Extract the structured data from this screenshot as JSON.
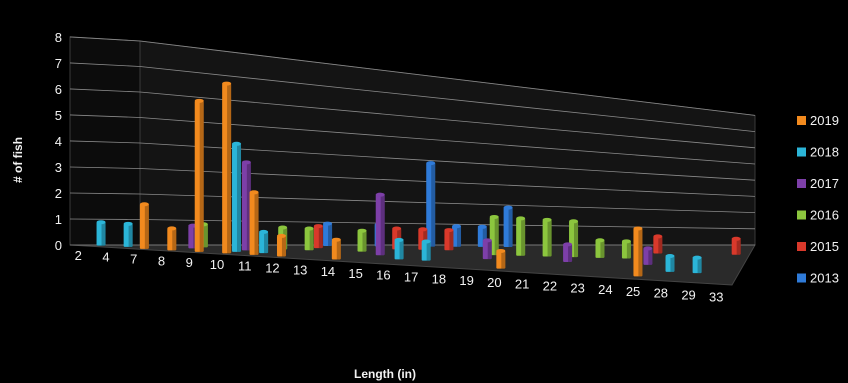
{
  "chart_data": {
    "type": "bar",
    "title": "",
    "xlabel": "Length (in)",
    "ylabel": "# of fish",
    "ylim": [
      0,
      8
    ],
    "y_ticks": [
      "0",
      "1",
      "2",
      "3",
      "4",
      "5",
      "6",
      "7",
      "8"
    ],
    "grid": true,
    "legend_position": "right",
    "categories": [
      "2",
      "4",
      "7",
      "8",
      "9",
      "10",
      "11",
      "12",
      "13",
      "14",
      "15",
      "16",
      "17",
      "18",
      "19",
      "20",
      "21",
      "22",
      "23",
      "24",
      "25",
      "28",
      "29",
      "33"
    ],
    "series": [
      {
        "name": "2019",
        "color": "#f28a1e",
        "values": [
          0,
          0,
          2,
          1,
          7,
          8,
          3,
          1,
          0,
          1,
          0,
          0,
          0,
          0,
          0,
          1,
          0,
          0,
          0,
          0,
          3,
          0,
          0,
          0
        ]
      },
      {
        "name": "2018",
        "color": "#2bb5d8",
        "values": [
          1,
          1,
          0,
          0,
          0,
          5,
          1,
          0,
          0,
          0,
          0,
          1,
          1,
          0,
          0,
          0,
          0,
          0,
          0,
          0,
          0,
          1,
          1,
          0
        ]
      },
      {
        "name": "2017",
        "color": "#7d3fa8",
        "values": [
          0,
          0,
          0,
          1,
          0,
          4,
          0,
          0,
          0,
          0,
          3,
          0,
          0,
          0,
          1,
          0,
          0,
          1,
          0,
          0,
          1,
          0,
          0,
          0
        ]
      },
      {
        "name": "2016",
        "color": "#8cc63e",
        "values": [
          0,
          0,
          0,
          1,
          0,
          0,
          1,
          1,
          0,
          1,
          0,
          0,
          0,
          0,
          2,
          2,
          2,
          2,
          1,
          1,
          0,
          0,
          0,
          0
        ]
      },
      {
        "name": "2015",
        "color": "#d9392b",
        "values": [
          0,
          0,
          0,
          0,
          0,
          0,
          0,
          1,
          0,
          0,
          1,
          1,
          1,
          0,
          0,
          0,
          0,
          0,
          0,
          0,
          1,
          0,
          0,
          1
        ]
      },
      {
        "name": "2013",
        "color": "#2f7bd9",
        "values": [
          0,
          0,
          0,
          0,
          0,
          0,
          0,
          1,
          0,
          1,
          0,
          4,
          1,
          1,
          2,
          0,
          0,
          0,
          0,
          0,
          0,
          0,
          0,
          0
        ]
      }
    ]
  }
}
